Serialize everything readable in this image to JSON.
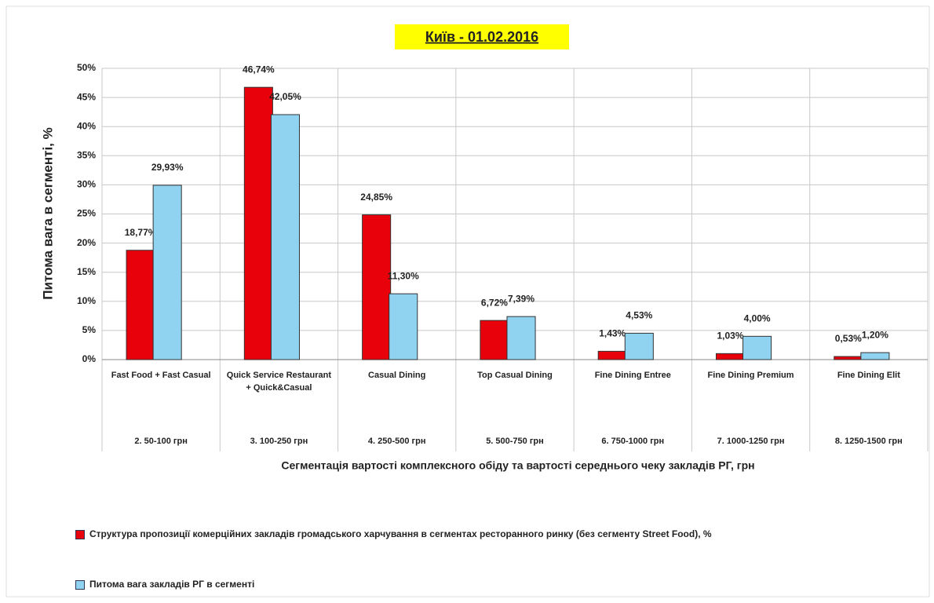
{
  "chart_data": {
    "type": "bar",
    "title": "Київ - 01.02.2016",
    "y_label": "Питома вага в сегменті, %",
    "x_label": "Сегментація вартості комплексного обіду та вартості середнього чеку закладів РГ, грн",
    "categories": [
      "Fast Food + Fast Casual",
      "Quick Service Restaurant + Quick&Casual",
      "Casual Dining",
      "Top Casual Dining",
      "Fine Dining Entree",
      "Fine Dining Premium",
      "Fine Dining Elit"
    ],
    "price_ranges": [
      "2. 50-100 грн",
      "3. 100-250 грн",
      "4. 250-500 грн",
      "5. 500-750 грн",
      "6. 750-1000 грн",
      "7. 1000-1250 грн",
      "8. 1250-1500 грн"
    ],
    "series": [
      {
        "name": "Структура пропозиції комерційних закладів громадського харчування в сегментах ресторанного ринку (без сегменту Street Food), %",
        "color": "#e8000b",
        "values": [
          18.77,
          46.74,
          24.85,
          6.72,
          1.43,
          1.03,
          0.53
        ],
        "value_labels": [
          "18,77%",
          "46,74%",
          "24,85%",
          "6,72%",
          "1,43%",
          "1,03%",
          "0,53%"
        ]
      },
      {
        "name": "Питома вага закладів РГ в сегменті",
        "color": "#8fd3f0",
        "values": [
          29.93,
          42.05,
          11.3,
          7.39,
          4.53,
          4.0,
          1.2
        ],
        "value_labels": [
          "29,93%",
          "42,05%",
          "11,30%",
          "7,39%",
          "4,53%",
          "4,00%",
          "1,20%"
        ]
      }
    ],
    "ylim": [
      0,
      50
    ],
    "yticks": [
      {
        "value": 0,
        "label": "0%"
      },
      {
        "value": 5,
        "label": "5%"
      },
      {
        "value": 10,
        "label": "10%"
      },
      {
        "value": 15,
        "label": "15%"
      },
      {
        "value": 20,
        "label": "20%"
      },
      {
        "value": 25,
        "label": "25%"
      },
      {
        "value": 30,
        "label": "30%"
      },
      {
        "value": 35,
        "label": "35%"
      },
      {
        "value": 40,
        "label": "40%"
      },
      {
        "value": 45,
        "label": "45%"
      },
      {
        "value": 50,
        "label": "50%"
      }
    ],
    "grid": true
  }
}
